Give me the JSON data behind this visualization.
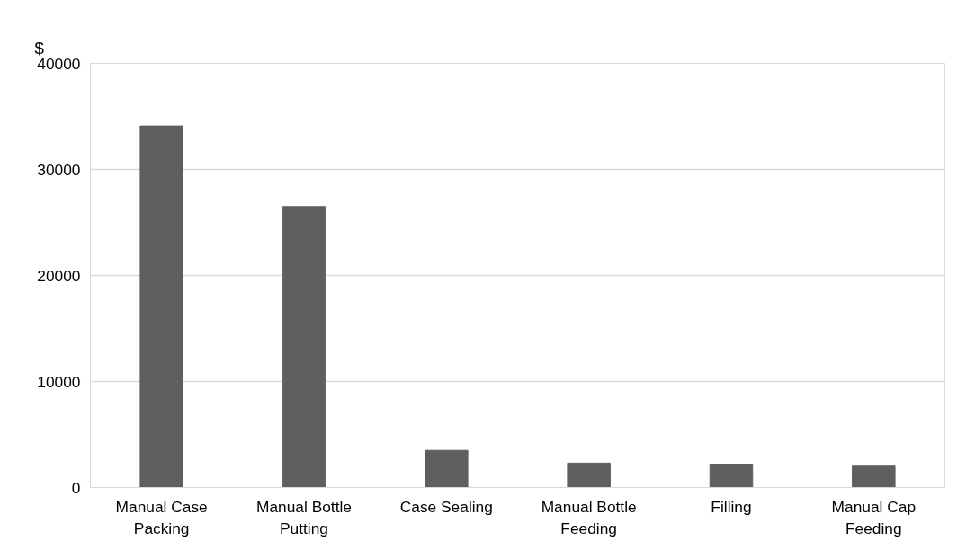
{
  "chart_data": {
    "type": "bar",
    "ylabel": "$",
    "categories": [
      "Manual Case Packing",
      "Manual Bottle Putting",
      "Case Sealing",
      "Manual Bottle Feeding",
      "Filling",
      "Manual Cap Feeding"
    ],
    "values": [
      34100,
      26500,
      3500,
      2300,
      2200,
      2100
    ],
    "color": "#5f5f5f",
    "ylim": [
      0,
      40000
    ],
    "yticks": [
      0,
      10000,
      20000,
      30000,
      40000
    ],
    "grid": "y"
  }
}
